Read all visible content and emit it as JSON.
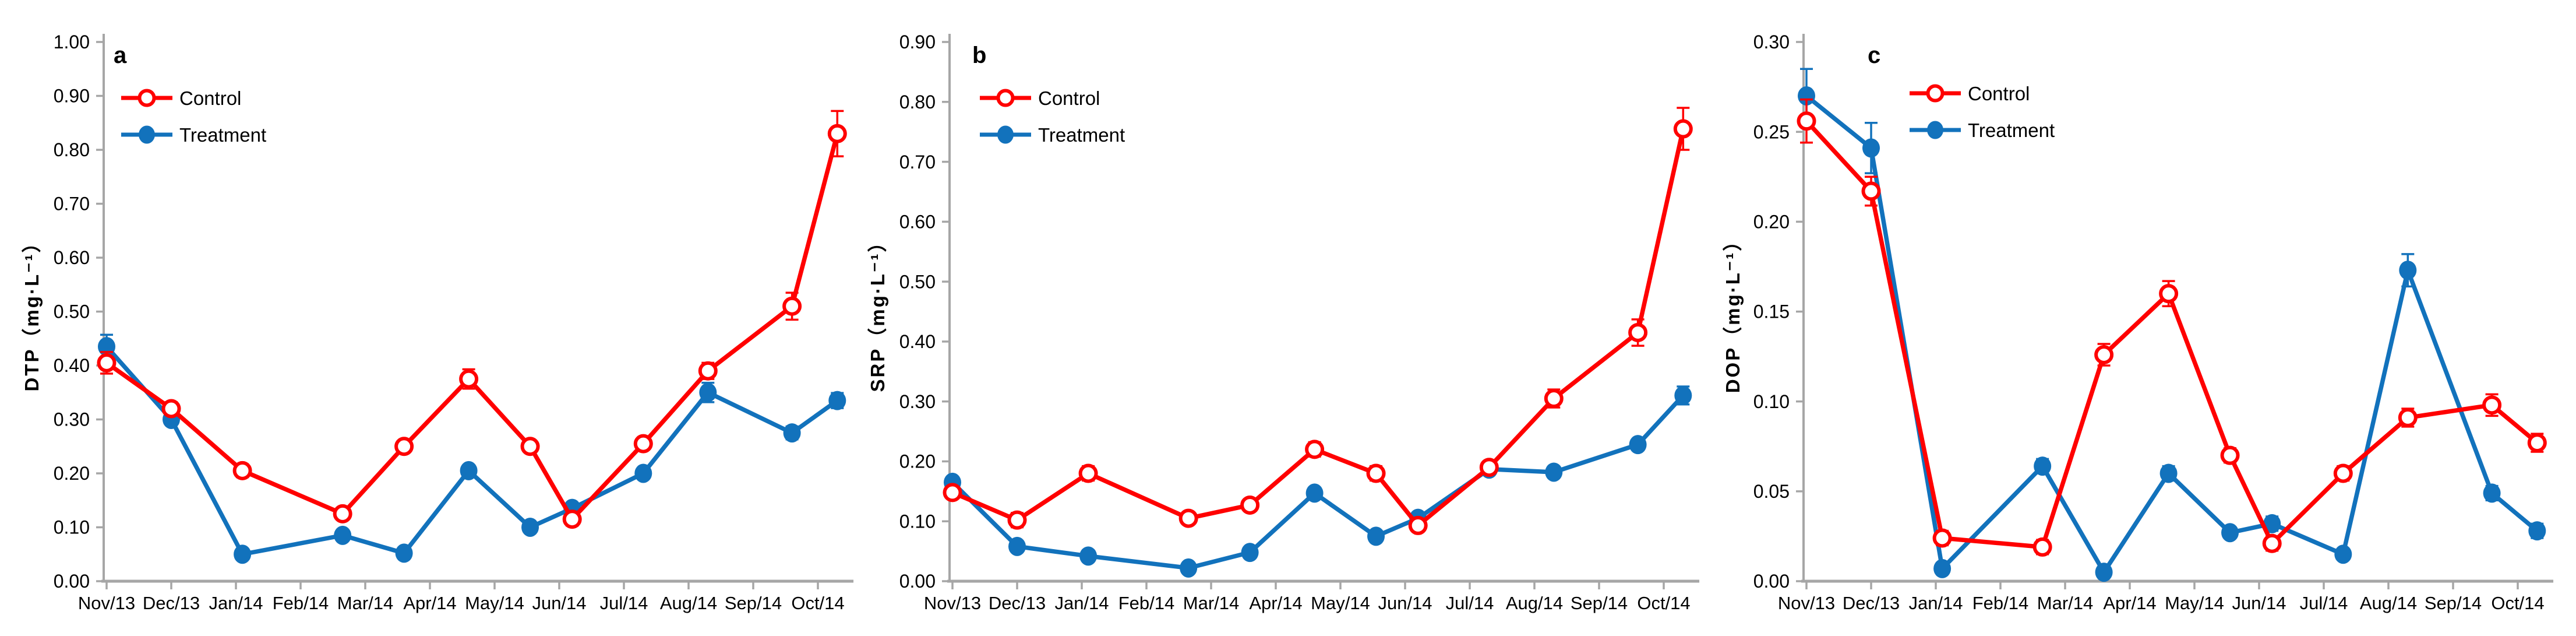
{
  "figure": {
    "background": "#FFFFFF",
    "axis_color": "#A6A6A6",
    "text_color": "#000000",
    "control_color": "#FF0000",
    "treatment_color": "#1272BC"
  },
  "chart_data": [
    {
      "type": "line",
      "panel_letter": "a",
      "ylabel": "DTP（mg·L⁻¹）",
      "xlabel": "",
      "ylim": [
        0.0,
        1.0
      ],
      "ystep": 0.1,
      "y_tick_labels": [
        "0.00",
        "0.10",
        "0.20",
        "0.30",
        "0.40",
        "0.50",
        "0.60",
        "0.70",
        "0.80",
        "0.90",
        "1.00"
      ],
      "categories": [
        "Nov/13",
        "Dec/13",
        "Jan/14",
        "Feb/14",
        "Mar/14",
        "Apr/14",
        "May/14",
        "Jun/14",
        "Jul/14",
        "Aug/14",
        "Sep/14",
        "Oct/14"
      ],
      "x_positions": [
        0,
        1,
        2.1,
        3.65,
        4.6,
        5.6,
        6.55,
        7.2,
        8.3,
        9.3,
        10.6,
        11.3
      ],
      "grid": false,
      "legend_position": "upper-left-inside",
      "series": [
        {
          "name": "Control",
          "marker": "open-circle",
          "color": "#FF0000",
          "values": [
            0.405,
            0.32,
            0.205,
            0.125,
            0.25,
            0.375,
            0.25,
            0.115,
            0.255,
            0.39,
            0.51,
            0.83
          ],
          "errors": [
            0.02,
            0.012,
            0.012,
            0.01,
            0.008,
            0.018,
            0.008,
            0.012,
            0.008,
            0.015,
            0.025,
            0.042
          ]
        },
        {
          "name": "Treatment",
          "marker": "filled-circle",
          "color": "#1272BC",
          "values": [
            0.435,
            0.3,
            0.05,
            0.085,
            0.052,
            0.205,
            0.1,
            0.135,
            0.2,
            0.35,
            0.275,
            0.335
          ],
          "errors": [
            0.022,
            0.01,
            0.005,
            0.005,
            0.005,
            0.008,
            0.005,
            0.008,
            0.006,
            0.018,
            0.012,
            0.014
          ]
        }
      ]
    },
    {
      "type": "line",
      "panel_letter": "b",
      "ylabel": "SRP（mg·L⁻¹）",
      "xlabel": "",
      "ylim": [
        0.0,
        0.9
      ],
      "ystep": 0.1,
      "y_tick_labels": [
        "0.00",
        "0.10",
        "0.20",
        "0.30",
        "0.40",
        "0.50",
        "0.60",
        "0.70",
        "0.80",
        "0.90"
      ],
      "categories": [
        "Nov/13",
        "Dec/13",
        "Jan/14",
        "Feb/14",
        "Mar/14",
        "Apr/14",
        "May/14",
        "Jun/14",
        "Jul/14",
        "Aug/14",
        "Sep/14",
        "Oct/14"
      ],
      "x_positions": [
        0,
        1,
        2.1,
        3.65,
        4.6,
        5.6,
        6.55,
        7.2,
        8.3,
        9.3,
        10.6,
        11.3
      ],
      "grid": false,
      "legend_position": "upper-left-inside",
      "series": [
        {
          "name": "Control",
          "marker": "open-circle",
          "color": "#FF0000",
          "values": [
            0.148,
            0.102,
            0.18,
            0.105,
            0.127,
            0.22,
            0.18,
            0.093,
            0.19,
            0.305,
            0.415,
            0.755
          ],
          "errors": [
            0.008,
            0.012,
            0.012,
            0.01,
            0.008,
            0.012,
            0.012,
            0.01,
            0.005,
            0.015,
            0.022,
            0.035
          ]
        },
        {
          "name": "Treatment",
          "marker": "filled-circle",
          "color": "#1272BC",
          "values": [
            0.165,
            0.058,
            0.042,
            0.022,
            0.048,
            0.147,
            0.075,
            0.105,
            0.187,
            0.182,
            0.228,
            0.31
          ],
          "errors": [
            0.008,
            0.005,
            0.004,
            0.004,
            0.004,
            0.006,
            0.005,
            0.006,
            0.005,
            0.006,
            0.008,
            0.015
          ]
        }
      ]
    },
    {
      "type": "line",
      "panel_letter": "c",
      "ylabel": "DOP（mg·L⁻¹）",
      "xlabel": "",
      "ylim": [
        0.0,
        0.3
      ],
      "ystep": 0.05,
      "y_tick_labels": [
        "0.00",
        "0.05",
        "0.10",
        "0.15",
        "0.20",
        "0.25",
        "0.30"
      ],
      "categories": [
        "Nov/13",
        "Dec/13",
        "Jan/14",
        "Feb/14",
        "Mar/14",
        "Apr/14",
        "May/14",
        "Jun/14",
        "Jul/14",
        "Aug/14",
        "Sep/14",
        "Oct/14"
      ],
      "x_positions": [
        0,
        1,
        2.1,
        3.65,
        4.6,
        5.6,
        6.55,
        7.2,
        8.3,
        9.3,
        10.6,
        11.3
      ],
      "grid": false,
      "legend_position": "upper-left-inside",
      "series": [
        {
          "name": "Control",
          "marker": "open-circle",
          "color": "#FF0000",
          "values": [
            0.256,
            0.217,
            0.024,
            0.019,
            0.126,
            0.16,
            0.07,
            0.021,
            0.06,
            0.091,
            0.098,
            0.077
          ],
          "errors": [
            0.012,
            0.008,
            0.004,
            0.004,
            0.006,
            0.007,
            0.004,
            0.004,
            0.004,
            0.005,
            0.006,
            0.005
          ]
        },
        {
          "name": "Treatment",
          "marker": "filled-circle",
          "color": "#1272BC",
          "values": [
            0.27,
            0.241,
            0.007,
            0.064,
            0.005,
            0.06,
            0.027,
            0.032,
            0.015,
            0.173,
            0.049,
            0.028
          ],
          "errors": [
            0.015,
            0.014,
            0.003,
            0.004,
            0.003,
            0.004,
            0.003,
            0.004,
            0.003,
            0.009,
            0.004,
            0.004
          ]
        }
      ]
    }
  ]
}
